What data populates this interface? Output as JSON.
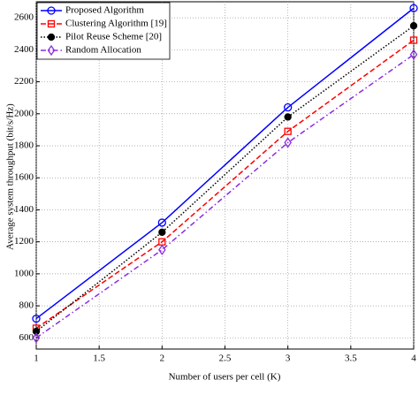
{
  "chart_data": {
    "type": "line",
    "xlabel": "Number of users per cell (K)",
    "ylabel": "Average system throughput (bit/s/Hz)",
    "x": [
      1,
      2,
      3,
      4
    ],
    "xlim": [
      1,
      4
    ],
    "xticks": [
      1,
      1.5,
      2,
      2.5,
      3,
      3.5,
      4
    ],
    "ylim": [
      530,
      2700
    ],
    "yticks": [
      600,
      800,
      1000,
      1200,
      1400,
      1600,
      1800,
      2000,
      2200,
      2400,
      2600
    ],
    "grid": true,
    "legend": "upper left",
    "series": [
      {
        "name": "Proposed Algorithm",
        "color": "#0000ff",
        "marker": "circle",
        "dash": "solid",
        "values": [
          720,
          1320,
          2040,
          2660
        ]
      },
      {
        "name": "Clustering Algorithm [19]",
        "color": "#ff0000",
        "marker": "square",
        "dash": "dashed",
        "values": [
          660,
          1200,
          1890,
          2460
        ]
      },
      {
        "name": "Pilot Reuse Scheme [20]",
        "color": "#000000",
        "marker": "filled-circle",
        "dash": "dotted",
        "values": [
          640,
          1260,
          1980,
          2550
        ]
      },
      {
        "name": "Random Allocation",
        "color": "#8b2be2",
        "marker": "diamond",
        "dash": "dashdot",
        "values": [
          600,
          1150,
          1820,
          2370
        ]
      }
    ]
  }
}
